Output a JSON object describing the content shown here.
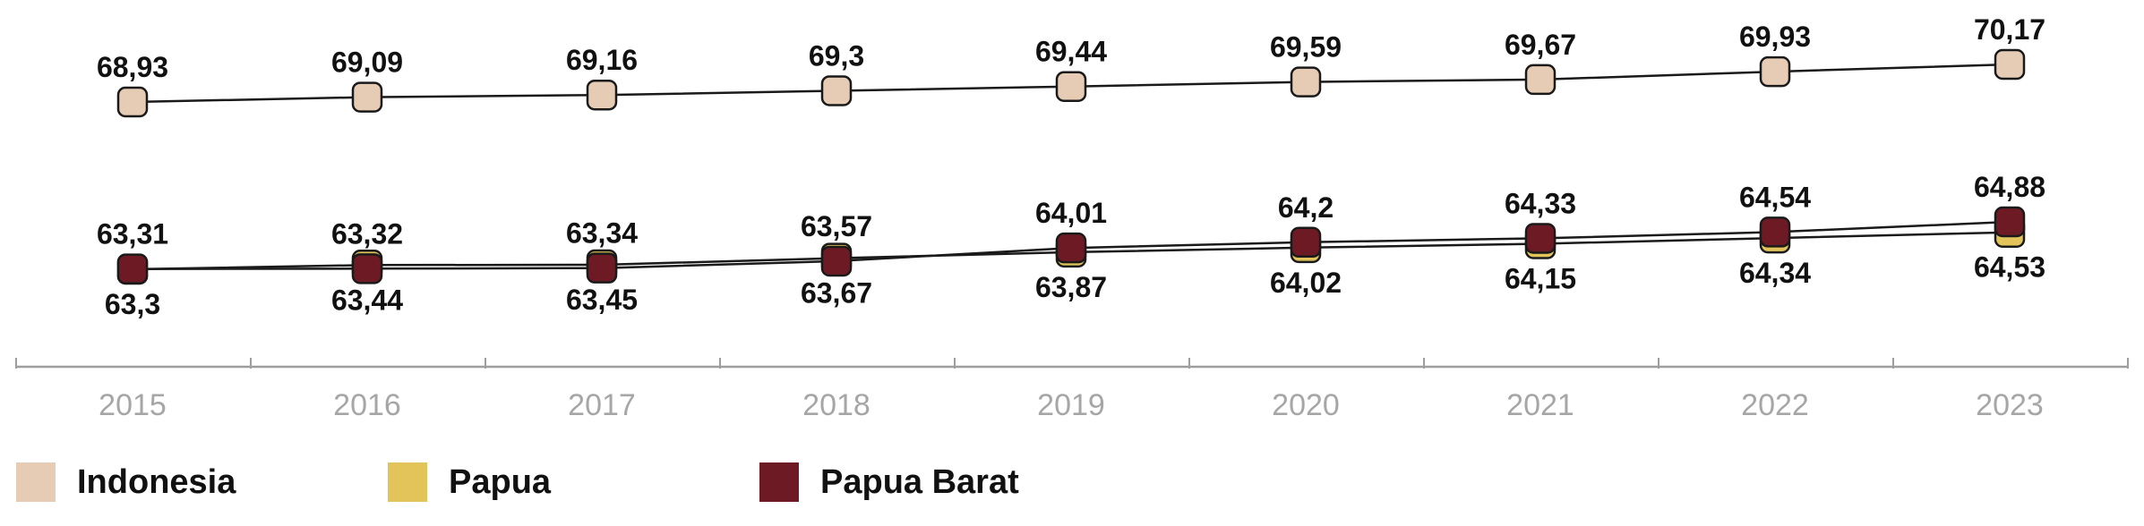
{
  "chart_data": {
    "type": "line",
    "x": [
      "2015",
      "2016",
      "2017",
      "2018",
      "2019",
      "2020",
      "2021",
      "2022",
      "2023"
    ],
    "series": [
      {
        "name": "Indonesia",
        "color": "#e6cbb5",
        "values": [
          68.93,
          69.09,
          69.16,
          69.3,
          69.44,
          69.59,
          69.67,
          69.93,
          70.17
        ],
        "labels": [
          "68,93",
          "69,09",
          "69,16",
          "69,3",
          "69,44",
          "69,59",
          "69,67",
          "69,93",
          "70,17"
        ]
      },
      {
        "name": "Papua",
        "color": "#e2c45a",
        "values": [
          63.3,
          63.44,
          63.45,
          63.67,
          63.87,
          64.02,
          64.15,
          64.34,
          64.53
        ],
        "labels": [
          "63,3",
          "63,44",
          "63,45",
          "63,67",
          "63,87",
          "64,02",
          "64,15",
          "64,34",
          "64,53"
        ]
      },
      {
        "name": "Papua Barat",
        "color": "#6e1a24",
        "values": [
          63.31,
          63.32,
          63.34,
          63.57,
          64.01,
          64.2,
          64.33,
          64.54,
          64.88
        ],
        "labels": [
          "63,31",
          "63,32",
          "63,34",
          "63,57",
          "64,01",
          "64,2",
          "64,33",
          "64,54",
          "64,88"
        ]
      }
    ],
    "legend_position": "bottom-left",
    "grid": false
  }
}
